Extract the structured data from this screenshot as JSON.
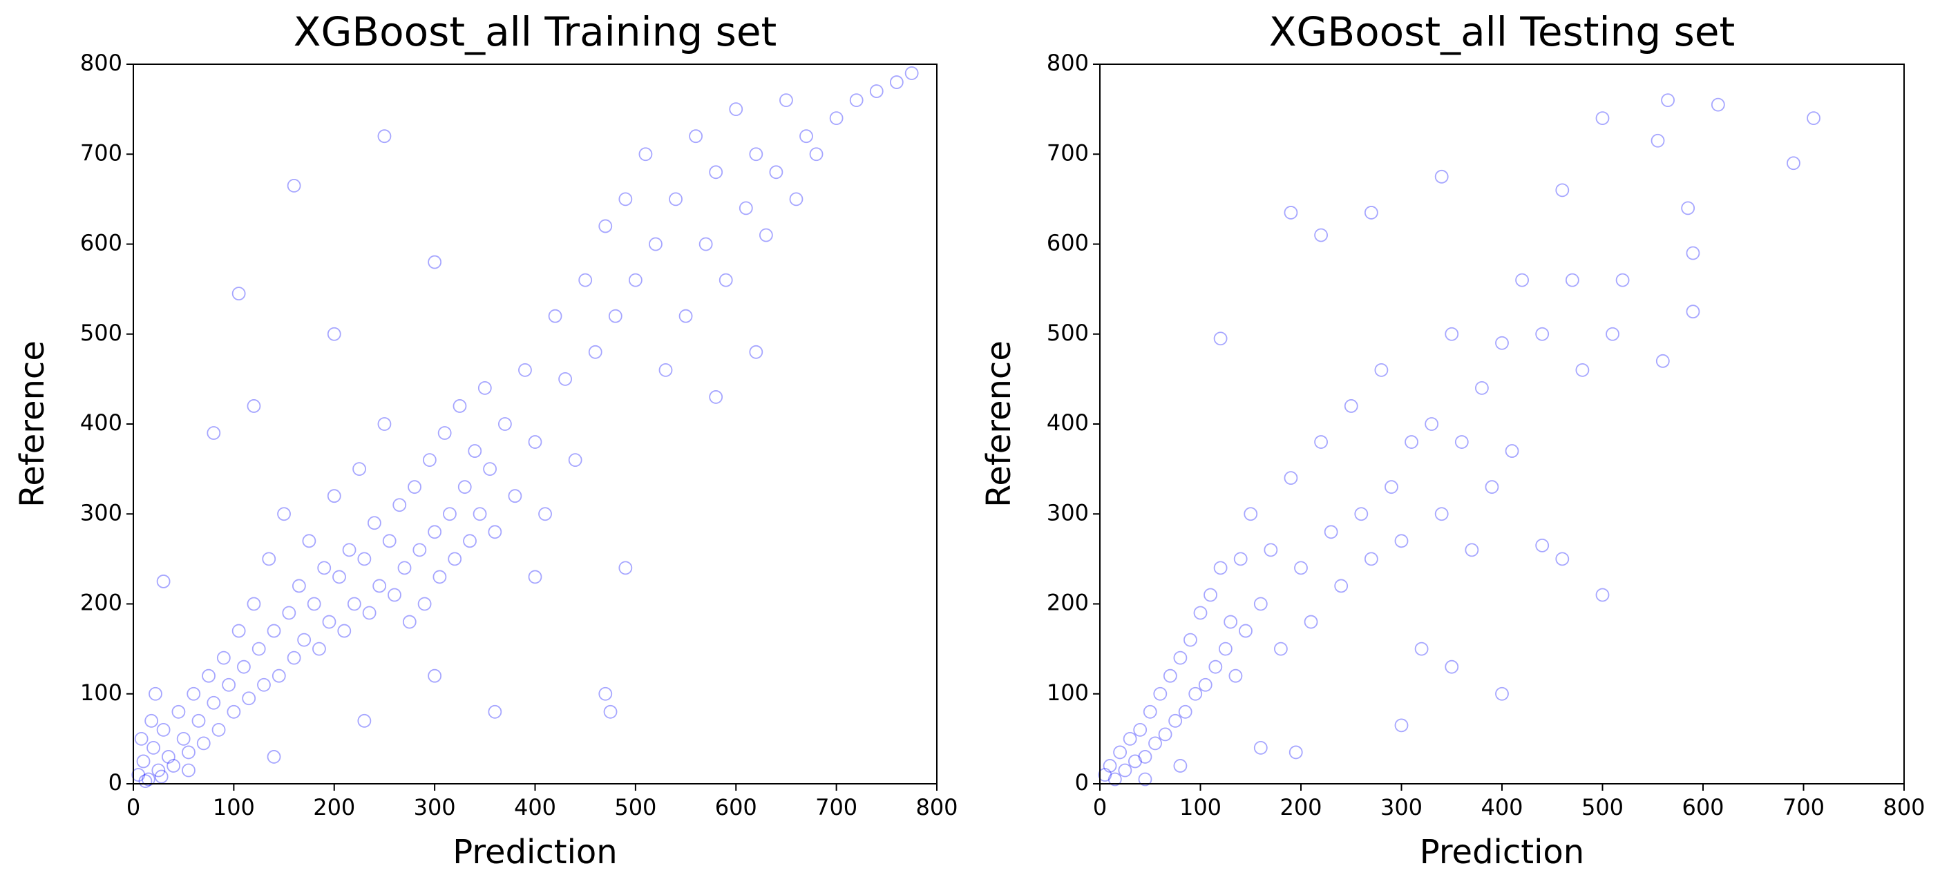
{
  "chart_data": [
    {
      "type": "scatter",
      "title": "XGBoost_all Training set",
      "x_label": "Prediction",
      "y_label": "Reference",
      "color": "#0000ff",
      "xlim": [
        0,
        800
      ],
      "ylim": [
        0,
        800
      ],
      "xticks": [
        0,
        100,
        200,
        300,
        400,
        500,
        600,
        700,
        800
      ],
      "yticks": [
        0,
        100,
        200,
        300,
        400,
        500,
        600,
        700,
        800
      ],
      "series": [
        {
          "name": "Training set",
          "x": [
            5,
            10,
            15,
            20,
            25,
            30,
            35,
            40,
            45,
            50,
            55,
            60,
            65,
            70,
            75,
            80,
            85,
            90,
            95,
            100,
            105,
            110,
            115,
            120,
            125,
            130,
            135,
            140,
            145,
            150,
            155,
            160,
            165,
            170,
            175,
            180,
            185,
            190,
            195,
            200,
            205,
            210,
            215,
            220,
            225,
            230,
            235,
            240,
            245,
            250,
            255,
            260,
            265,
            270,
            275,
            280,
            285,
            290,
            295,
            300,
            305,
            310,
            315,
            320,
            325,
            330,
            335,
            340,
            345,
            350,
            355,
            360,
            370,
            380,
            390,
            400,
            410,
            420,
            430,
            440,
            450,
            460,
            470,
            480,
            490,
            500,
            510,
            520,
            530,
            540,
            550,
            560,
            570,
            580,
            590,
            600,
            610,
            620,
            630,
            640,
            650,
            660,
            670,
            680,
            700,
            720,
            740,
            760,
            775,
            160,
            105,
            30,
            470,
            475,
            490,
            120,
            300,
            250,
            200,
            360,
            400,
            580,
            620,
            80,
            55,
            140,
            230,
            300,
            12,
            8,
            18,
            22,
            28
          ],
          "values": [
            10,
            25,
            5,
            40,
            15,
            60,
            30,
            20,
            80,
            50,
            35,
            100,
            70,
            45,
            120,
            90,
            60,
            140,
            110,
            80,
            170,
            130,
            95,
            200,
            150,
            110,
            250,
            170,
            120,
            300,
            190,
            140,
            220,
            160,
            270,
            200,
            150,
            240,
            180,
            320,
            230,
            170,
            260,
            200,
            350,
            250,
            190,
            290,
            220,
            400,
            270,
            210,
            310,
            240,
            180,
            330,
            260,
            200,
            360,
            280,
            230,
            390,
            300,
            250,
            420,
            330,
            270,
            370,
            300,
            440,
            350,
            280,
            400,
            320,
            460,
            380,
            300,
            520,
            450,
            360,
            560,
            480,
            620,
            520,
            650,
            560,
            700,
            600,
            460,
            650,
            520,
            720,
            600,
            680,
            560,
            750,
            640,
            700,
            610,
            680,
            760,
            650,
            720,
            700,
            740,
            760,
            770,
            780,
            790,
            665,
            545,
            225,
            100,
            80,
            240,
            420,
            580,
            720,
            500,
            80,
            230,
            430,
            480,
            390,
            15,
            30,
            70,
            120,
            3,
            50,
            70,
            100,
            8
          ]
        }
      ]
    },
    {
      "type": "scatter",
      "title": "XGBoost_all Testing set",
      "x_label": "Prediction",
      "y_label": "Reference",
      "color": "#0000ff",
      "xlim": [
        0,
        800
      ],
      "ylim": [
        0,
        800
      ],
      "xticks": [
        0,
        100,
        200,
        300,
        400,
        500,
        600,
        700,
        800
      ],
      "yticks": [
        0,
        100,
        200,
        300,
        400,
        500,
        600,
        700,
        800
      ],
      "series": [
        {
          "name": "Testing set",
          "x": [
            5,
            10,
            15,
            20,
            25,
            30,
            35,
            40,
            45,
            50,
            55,
            60,
            65,
            70,
            75,
            80,
            85,
            90,
            95,
            100,
            105,
            110,
            115,
            120,
            125,
            130,
            135,
            140,
            145,
            150,
            160,
            170,
            180,
            190,
            200,
            210,
            220,
            230,
            240,
            250,
            260,
            270,
            280,
            290,
            300,
            310,
            320,
            330,
            340,
            350,
            360,
            370,
            380,
            390,
            400,
            410,
            420,
            440,
            460,
            470,
            480,
            500,
            510,
            520,
            555,
            565,
            585,
            590,
            615,
            690,
            710,
            500,
            460,
            440,
            190,
            270,
            340,
            160,
            300,
            195,
            120,
            220,
            560,
            590,
            400,
            350,
            80,
            45
          ],
          "values": [
            10,
            20,
            5,
            35,
            15,
            50,
            25,
            60,
            30,
            80,
            45,
            100,
            55,
            120,
            70,
            140,
            80,
            160,
            100,
            190,
            110,
            210,
            130,
            240,
            150,
            180,
            120,
            250,
            170,
            300,
            200,
            260,
            150,
            340,
            240,
            180,
            380,
            280,
            220,
            420,
            300,
            250,
            460,
            330,
            270,
            380,
            150,
            400,
            300,
            500,
            380,
            260,
            440,
            330,
            490,
            370,
            560,
            500,
            660,
            560,
            460,
            740,
            500,
            560,
            715,
            760,
            640,
            590,
            755,
            690,
            740,
            210,
            250,
            265,
            635,
            635,
            675,
            40,
            65,
            35,
            495,
            610,
            470,
            525,
            100,
            130,
            20,
            5
          ]
        }
      ]
    }
  ]
}
